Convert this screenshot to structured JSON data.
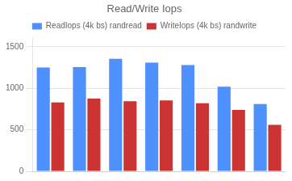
{
  "chart_data": {
    "type": "bar",
    "title": "Read/Write Iops",
    "categories": [
      null,
      null,
      null,
      null,
      null,
      null,
      null
    ],
    "series": [
      {
        "name": "ReadIops (4k bs) randread",
        "color": "#4d90fe",
        "values": [
          1250,
          1255,
          1355,
          1310,
          1280,
          1020,
          810
        ]
      },
      {
        "name": "WriteIops (4k bs) randwrite",
        "color": "#cc3333",
        "values": [
          830,
          875,
          845,
          855,
          820,
          740,
          560
        ]
      }
    ],
    "ylim": [
      0,
      1600
    ],
    "yticks": [
      0,
      500,
      1000,
      1500
    ],
    "grid": true,
    "legend": "top",
    "tick_labels": "y"
  }
}
